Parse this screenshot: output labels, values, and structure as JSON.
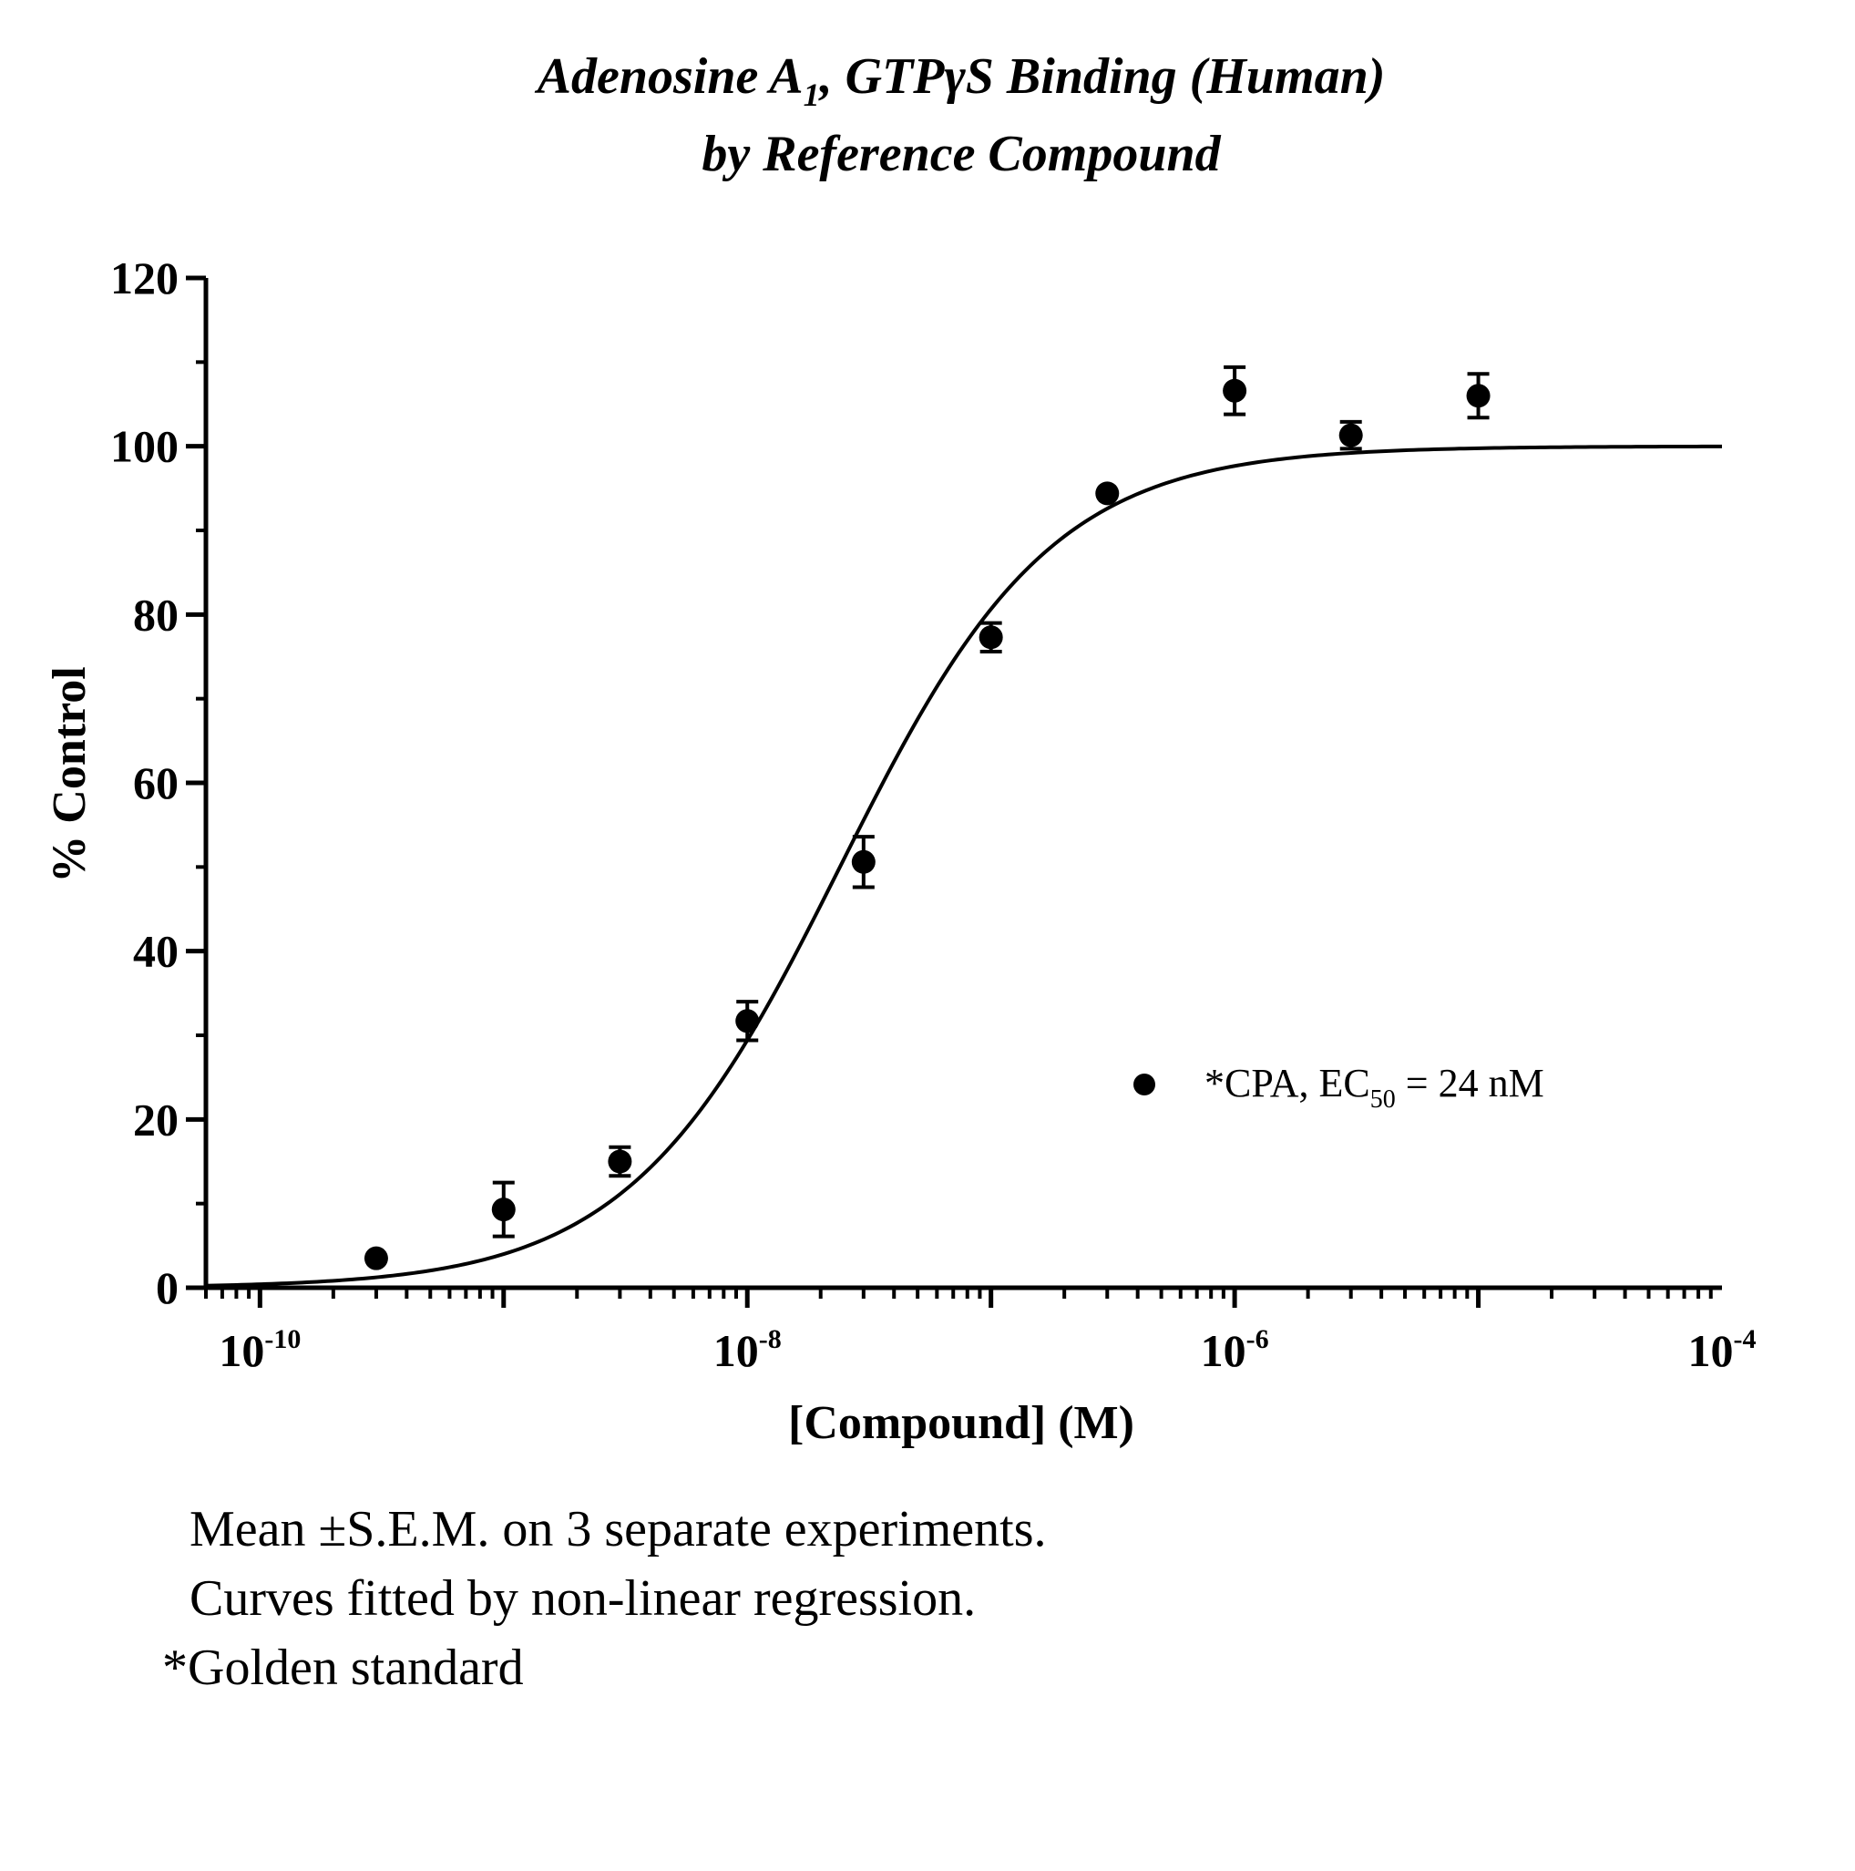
{
  "chart_data": {
    "type": "scatter",
    "title_line1_main": "Adenosine A",
    "title_line1_sub": "1",
    "title_line1_rest": ", GTPγS Binding (Human)",
    "title_line2": "by Reference Compound",
    "xlabel": "[Compound] (M)",
    "ylabel": "% Control",
    "xscale": "log",
    "xlim": [
      6e-11,
      0.0001
    ],
    "ylim": [
      0,
      120
    ],
    "y_ticks": [
      0,
      20,
      40,
      60,
      80,
      100,
      120
    ],
    "x_ticks": [
      {
        "value": 1e-10,
        "base": "10",
        "exp": "-10"
      },
      {
        "value": 1e-08,
        "base": "10",
        "exp": "-8"
      },
      {
        "value": 1e-06,
        "base": "10",
        "exp": "-6"
      },
      {
        "value": 0.0001,
        "base": "10",
        "exp": "-4"
      }
    ],
    "series": [
      {
        "name": "*CPA, EC50 = 24  nM",
        "x": [
          3e-10,
          1e-09,
          3e-09,
          1e-08,
          3e-08,
          1e-07,
          3e-07,
          1e-06,
          3e-06,
          1e-05
        ],
        "y": [
          3.5,
          9.3,
          15.0,
          31.7,
          50.6,
          77.3,
          94.4,
          106.6,
          101.3,
          106.0
        ],
        "sem": [
          0,
          3.2,
          1.7,
          2.3,
          3.0,
          1.7,
          0,
          2.8,
          1.6,
          2.6
        ]
      }
    ],
    "fit": {
      "model": "sigmoidal dose-response",
      "bottom": 0,
      "top": 100,
      "ec50": 2.4e-08,
      "hill": 1.0
    },
    "legend": {
      "text_main": "*CPA, EC",
      "text_sub": "50",
      "text_rest": " = 24  nM",
      "placement": "lower-right"
    },
    "grid": false
  },
  "notes": {
    "line1": "Mean ±S.E.M. on 3 separate experiments.",
    "line2": "Curves fitted by non-linear regression.",
    "line3": "*Golden standard"
  }
}
